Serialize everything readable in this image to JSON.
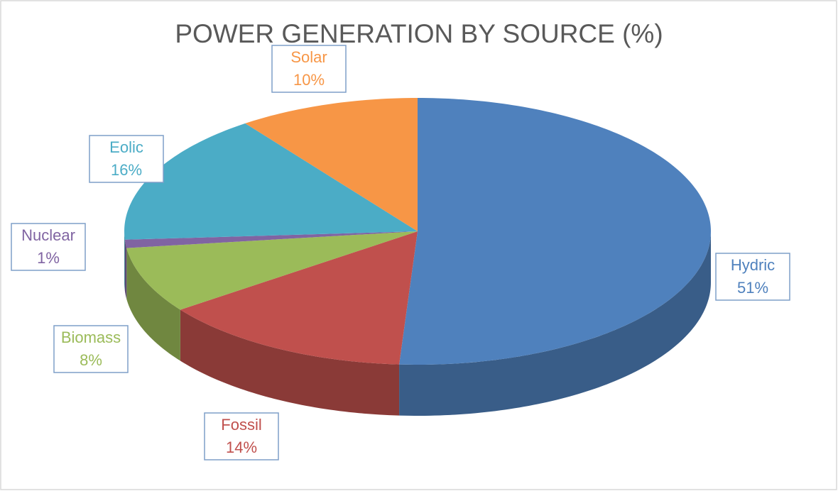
{
  "chart_data": {
    "type": "pie",
    "title": "POWER GENERATION BY SOURCE (%)",
    "categories": [
      "Hydric",
      "Fossil",
      "Biomass",
      "Nuclear",
      "Eolic",
      "Solar"
    ],
    "values": [
      51,
      14,
      8,
      1,
      16,
      10
    ],
    "value_labels": [
      "51%",
      "14%",
      "8%",
      "1%",
      "16%",
      "10%"
    ],
    "colors": [
      "#4f81bd",
      "#c0504d",
      "#9bbb59",
      "#8064a2",
      "#4bacc6",
      "#f79646"
    ]
  }
}
